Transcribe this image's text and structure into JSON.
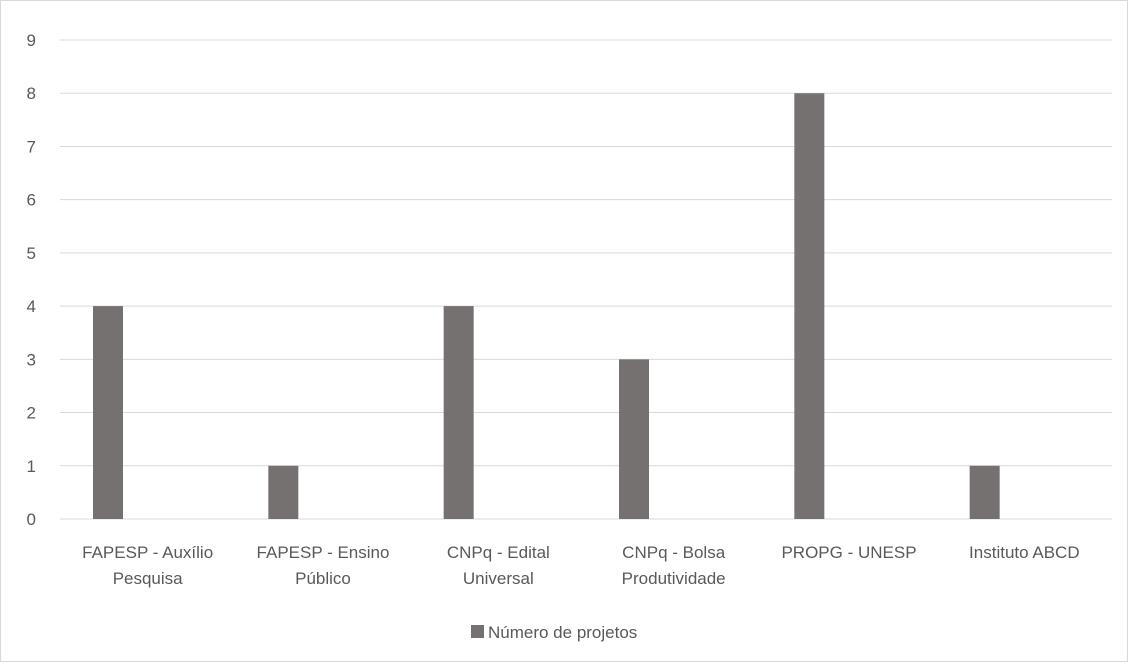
{
  "chart_data": {
    "type": "bar",
    "title": "",
    "xlabel": "",
    "ylabel": "",
    "categories": [
      [
        "FAPESP - Auxílio",
        "Pesquisa"
      ],
      [
        "FAPESP - Ensino",
        "Público"
      ],
      [
        "CNPq - Edital",
        "Universal"
      ],
      [
        "CNPq - Bolsa",
        "Produtividade"
      ],
      [
        "PROPG - UNESP"
      ],
      [
        "Instituto ABCD"
      ]
    ],
    "series": [
      {
        "name": "Número de projetos",
        "values": [
          4,
          1,
          4,
          3,
          8,
          1
        ],
        "color": "#767171"
      }
    ],
    "ylim": [
      0,
      9
    ],
    "yticks": [
      0,
      1,
      2,
      3,
      4,
      5,
      6,
      7,
      8,
      9
    ],
    "grid": true,
    "gridColor": "#d9d9d9",
    "legend": "bottom"
  }
}
